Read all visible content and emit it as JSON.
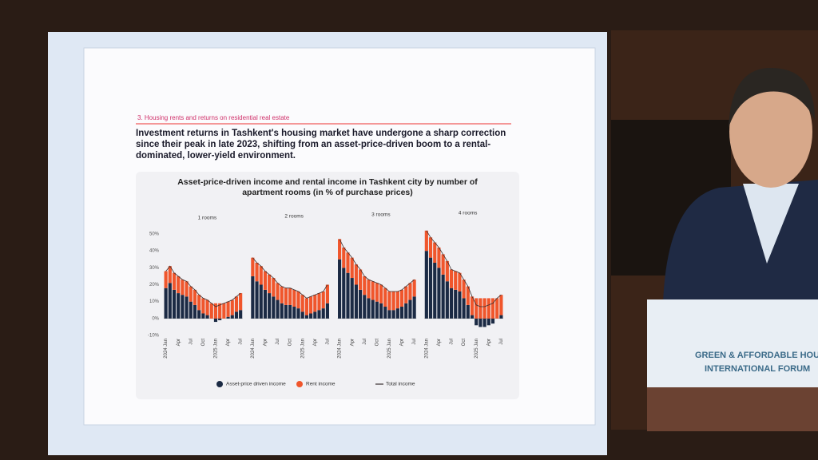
{
  "slide": {
    "heading": "3. Housing rents and returns on residential real estate",
    "text": "Investment returns in Tashkent's housing market have undergone a sharp correction since their peak in late 2023, shifting from an asset-price-driven boom to a rental-dominated, lower-yield environment."
  },
  "podium": {
    "line1": "GREEN & AFFORDABLE HOU",
    "line2": "INTERNATIONAL FORUM"
  },
  "chart_data": {
    "type": "bar",
    "title": "Asset-price-driven income and rental income in Tashkent city by number of apartment rooms (in % of purchase prices)",
    "panel_titles": [
      "1 rooms",
      "2 rooms",
      "3 rooms",
      "4 rooms"
    ],
    "categories": [
      "2024 Jan",
      null,
      null,
      "Apr",
      null,
      null,
      "Jul",
      null,
      null,
      "Oct",
      null,
      null,
      "2025 Jan",
      null,
      null,
      "Apr",
      null,
      null,
      "Jul"
    ],
    "ylim": [
      -10,
      50
    ],
    "yticks": [
      {
        "value": -10,
        "label": "-10%"
      },
      {
        "value": 0,
        "label": "0%"
      },
      {
        "value": 10,
        "label": "10%"
      },
      {
        "value": 20,
        "label": "20%"
      },
      {
        "value": 30,
        "label": "30%"
      },
      {
        "value": 40,
        "label": "40%"
      },
      {
        "value": 50,
        "label": "50%"
      }
    ],
    "series": [
      {
        "name": "Asset-price driven income",
        "color": "#1b2a44",
        "values": [
          [
            18,
            21,
            17,
            15,
            14,
            13,
            10,
            8,
            5,
            3,
            2,
            0,
            -2,
            -1,
            0,
            1,
            2,
            4,
            5
          ],
          [
            25,
            22,
            20,
            17,
            15,
            13,
            11,
            9,
            8,
            8,
            7,
            6,
            4,
            2,
            3,
            4,
            5,
            6,
            9
          ],
          [
            35,
            30,
            27,
            24,
            20,
            17,
            14,
            12,
            11,
            10,
            9,
            7,
            5,
            5,
            6,
            7,
            9,
            11,
            13
          ],
          [
            40,
            36,
            33,
            30,
            26,
            22,
            18,
            17,
            16,
            12,
            8,
            2,
            -4,
            -5,
            -5,
            -4,
            -3,
            0,
            2
          ]
        ]
      },
      {
        "name": "Rent income",
        "color": "#f0562c",
        "values": [
          [
            10,
            10,
            10,
            10,
            9,
            9,
            9,
            9,
            9,
            9,
            9,
            9,
            9,
            9,
            9,
            9,
            9,
            9,
            10
          ],
          [
            11,
            11,
            11,
            11,
            11,
            11,
            10,
            10,
            10,
            10,
            10,
            10,
            10,
            10,
            10,
            10,
            10,
            10,
            11
          ],
          [
            12,
            12,
            12,
            12,
            12,
            12,
            11,
            11,
            11,
            11,
            11,
            11,
            11,
            11,
            10,
            10,
            10,
            10,
            10
          ],
          [
            12,
            12,
            12,
            12,
            12,
            12,
            11,
            11,
            11,
            11,
            11,
            11,
            12,
            12,
            12,
            12,
            12,
            12,
            12
          ]
        ]
      },
      {
        "name": "Total income",
        "color": "#3a3030",
        "values": [
          [
            28,
            31,
            27,
            25,
            23,
            22,
            19,
            17,
            14,
            12,
            11,
            9,
            7,
            8,
            9,
            10,
            11,
            13,
            15
          ],
          [
            36,
            33,
            31,
            28,
            26,
            24,
            21,
            19,
            18,
            18,
            17,
            16,
            14,
            12,
            13,
            14,
            15,
            16,
            20
          ],
          [
            47,
            42,
            39,
            36,
            32,
            29,
            25,
            23,
            22,
            21,
            20,
            18,
            16,
            16,
            16,
            17,
            19,
            21,
            23
          ],
          [
            52,
            48,
            45,
            42,
            38,
            34,
            29,
            28,
            27,
            23,
            19,
            13,
            8,
            7,
            7,
            8,
            9,
            12,
            14
          ]
        ]
      }
    ]
  }
}
